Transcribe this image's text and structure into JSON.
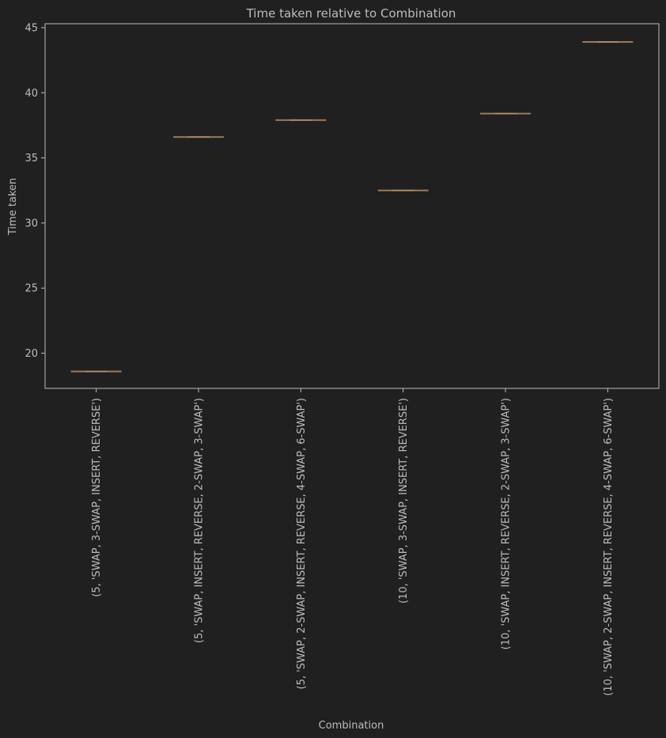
{
  "chart_data": {
    "type": "box",
    "title": "Time taken relative to Combination",
    "xlabel": "Combination",
    "ylabel": "Time taken",
    "categories": [
      "(5, 'SWAP, 3-SWAP, INSERT, REVERSE')",
      "(5, 'SWAP, INSERT, REVERSE, 2-SWAP, 3-SWAP')",
      "(5, 'SWAP, 2-SWAP, INSERT, REVERSE, 4-SWAP, 6-SWAP')",
      "(10, 'SWAP, 3-SWAP, INSERT, REVERSE')",
      "(10, 'SWAP, INSERT, REVERSE, 2-SWAP, 3-SWAP')",
      "(10, 'SWAP, 2-SWAP, INSERT, REVERSE, 4-SWAP, 6-SWAP')"
    ],
    "values": [
      18.6,
      36.6,
      37.9,
      32.5,
      38.4,
      43.9
    ],
    "ylim": [
      17.3,
      45.3
    ],
    "yticks": [
      20,
      25,
      30,
      35,
      40,
      45
    ],
    "grid": false,
    "legend": "none",
    "colors": {
      "background": "#202020",
      "axes": "#bcbcbc",
      "text": "#bcbcbc",
      "box": "#9b7b5c"
    }
  }
}
